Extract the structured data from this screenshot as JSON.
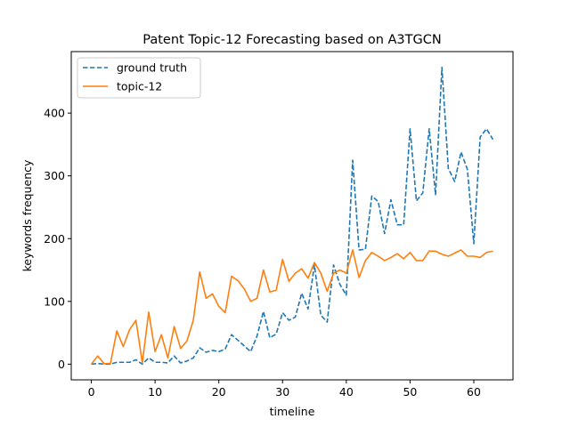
{
  "chart_data": {
    "type": "line",
    "title": "Patent Topic-12 Forecasting based on A3TGCN",
    "xlabel": "timeline",
    "ylabel": "keywords frequency",
    "xlim": [
      -3.15,
      66.15
    ],
    "ylim": [
      -25,
      498
    ],
    "xticks": [
      0,
      10,
      20,
      30,
      40,
      50,
      60
    ],
    "yticks": [
      0,
      100,
      200,
      300,
      400
    ],
    "grid": false,
    "legend": "top-left",
    "x": [
      0,
      1,
      2,
      3,
      4,
      5,
      6,
      7,
      8,
      9,
      10,
      11,
      12,
      13,
      14,
      15,
      16,
      17,
      18,
      19,
      20,
      21,
      22,
      23,
      24,
      25,
      26,
      27,
      28,
      29,
      30,
      31,
      32,
      33,
      34,
      35,
      36,
      37,
      38,
      39,
      40,
      41,
      42,
      43,
      44,
      45,
      46,
      47,
      48,
      49,
      50,
      51,
      52,
      53,
      54,
      55,
      56,
      57,
      58,
      59,
      60,
      61,
      62,
      63
    ],
    "series": [
      {
        "name": "ground truth",
        "color": "#1f77b4",
        "style": "dashed",
        "values": [
          0,
          1,
          0,
          0,
          3,
          3,
          3,
          7,
          0,
          10,
          3,
          3,
          2,
          13,
          2,
          5,
          10,
          26,
          19,
          22,
          20,
          24,
          47,
          38,
          29,
          20,
          45,
          84,
          42,
          48,
          82,
          70,
          75,
          113,
          88,
          158,
          78,
          67,
          158,
          127,
          110,
          325,
          182,
          183,
          268,
          259,
          208,
          262,
          222,
          222,
          375,
          260,
          273,
          375,
          270,
          473,
          312,
          291,
          338,
          310,
          192,
          362,
          375,
          358
        ]
      },
      {
        "name": "topic-12",
        "color": "#ff7f0e",
        "style": "solid",
        "values": [
          0,
          13,
          1,
          1,
          53,
          28,
          55,
          70,
          2,
          83,
          20,
          47,
          10,
          60,
          25,
          37,
          70,
          147,
          105,
          112,
          92,
          82,
          140,
          133,
          120,
          100,
          105,
          150,
          115,
          118,
          167,
          132,
          145,
          152,
          137,
          162,
          145,
          116,
          145,
          150,
          145,
          182,
          138,
          165,
          178,
          172,
          165,
          170,
          176,
          168,
          178,
          165,
          165,
          180,
          180,
          175,
          172,
          177,
          182,
          172,
          172,
          170,
          178,
          180
        ]
      }
    ]
  }
}
